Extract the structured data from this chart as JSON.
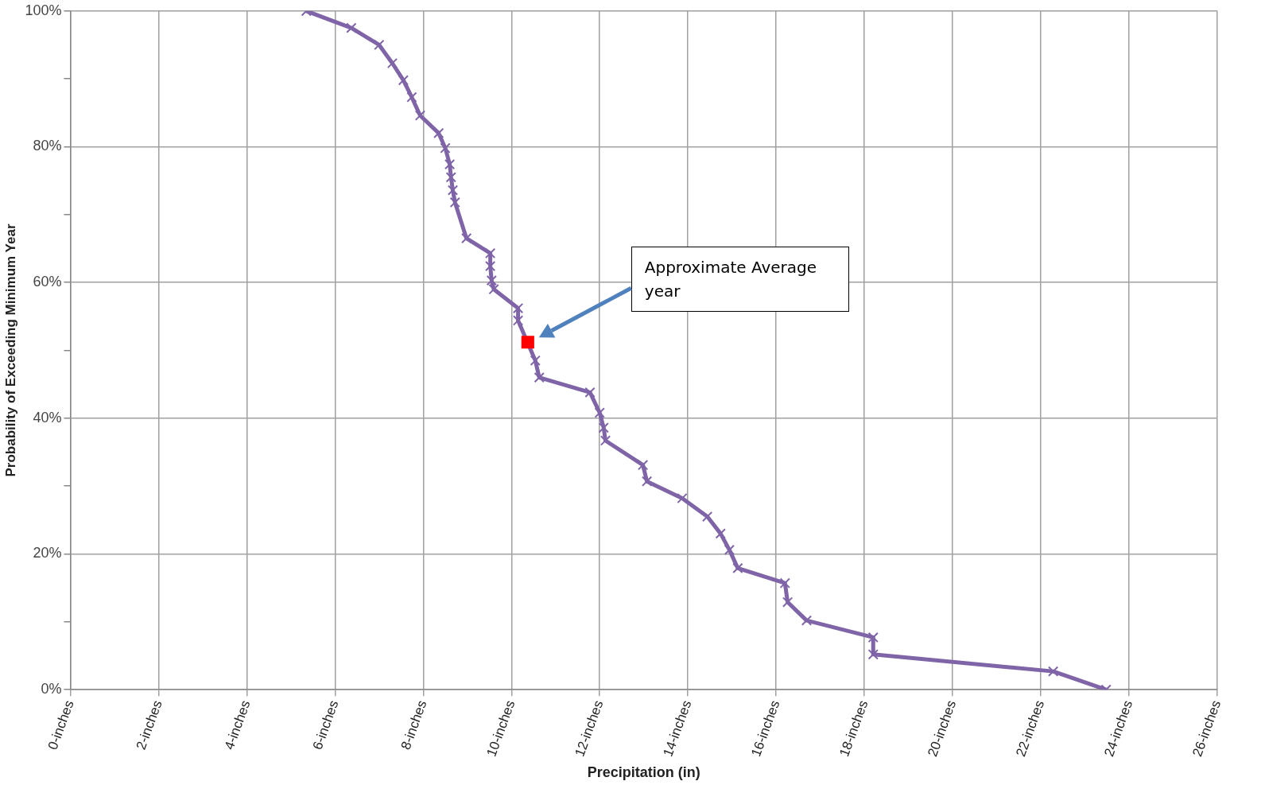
{
  "chart_data": {
    "type": "line",
    "xlabel": "Precipitation (in)",
    "ylabel": "Probability of Exceeding Minimum Year",
    "xlim": [
      0,
      26
    ],
    "ylim": [
      0,
      100
    ],
    "xticks": [
      {
        "value": 0,
        "label": "0-inches"
      },
      {
        "value": 2,
        "label": "2-inches"
      },
      {
        "value": 4,
        "label": "4-inches"
      },
      {
        "value": 6,
        "label": "6-inches"
      },
      {
        "value": 8,
        "label": "8-inches"
      },
      {
        "value": 10,
        "label": "10-inches"
      },
      {
        "value": 12,
        "label": "12-inches"
      },
      {
        "value": 14,
        "label": "14-inches"
      },
      {
        "value": 16,
        "label": "16-inches"
      },
      {
        "value": 18,
        "label": "18-inches"
      },
      {
        "value": 20,
        "label": "20-inches"
      },
      {
        "value": 22,
        "label": "22-inches"
      },
      {
        "value": 24,
        "label": "24-inches"
      },
      {
        "value": 26,
        "label": "26-inches"
      }
    ],
    "yticks": [
      {
        "value": 0,
        "label": "0%"
      },
      {
        "value": 10,
        "label": null
      },
      {
        "value": 20,
        "label": "20%"
      },
      {
        "value": 30,
        "label": null
      },
      {
        "value": 40,
        "label": "40%"
      },
      {
        "value": 50,
        "label": null
      },
      {
        "value": 60,
        "label": "60%"
      },
      {
        "value": 70,
        "label": null
      },
      {
        "value": 80,
        "label": "80%"
      },
      {
        "value": 90,
        "label": null
      },
      {
        "value": 100,
        "label": "100%"
      }
    ],
    "grid": true,
    "legend": false,
    "series": [
      {
        "color": "#7f64a8",
        "marker": "cross",
        "line_style": "solid",
        "x": [
          5.35,
          6.37,
          7.0,
          7.3,
          7.55,
          7.74,
          7.93,
          8.35,
          8.5,
          8.6,
          8.63,
          8.67,
          8.72,
          8.98,
          9.52,
          9.52,
          9.55,
          9.6,
          10.15,
          10.15,
          10.54,
          10.63,
          11.78,
          12.0,
          12.09,
          12.13,
          12.98,
          13.07,
          13.87,
          14.44,
          14.74,
          14.94,
          15.13,
          16.2,
          16.26,
          16.69,
          18.2,
          18.2,
          22.28,
          23.48
        ],
        "values": [
          100,
          97.5,
          95,
          92.3,
          89.8,
          87.3,
          84.6,
          82,
          79.8,
          77.4,
          75.5,
          73.6,
          71.8,
          66.5,
          64.3,
          62.4,
          60.3,
          59,
          56.2,
          54.4,
          48.5,
          46,
          43.8,
          40.8,
          38.6,
          36.7,
          33.1,
          30.7,
          28.2,
          25.5,
          23,
          20.6,
          17.9,
          15.7,
          12.9,
          10.2,
          7.7,
          5.2,
          2.7,
          0
        ]
      },
      {
        "type": "scatter",
        "color": "#ff0000",
        "marker": "square",
        "x": [
          10.37
        ],
        "values": [
          51.2
        ]
      }
    ],
    "annotations": [
      "Approximate Average year"
    ]
  }
}
